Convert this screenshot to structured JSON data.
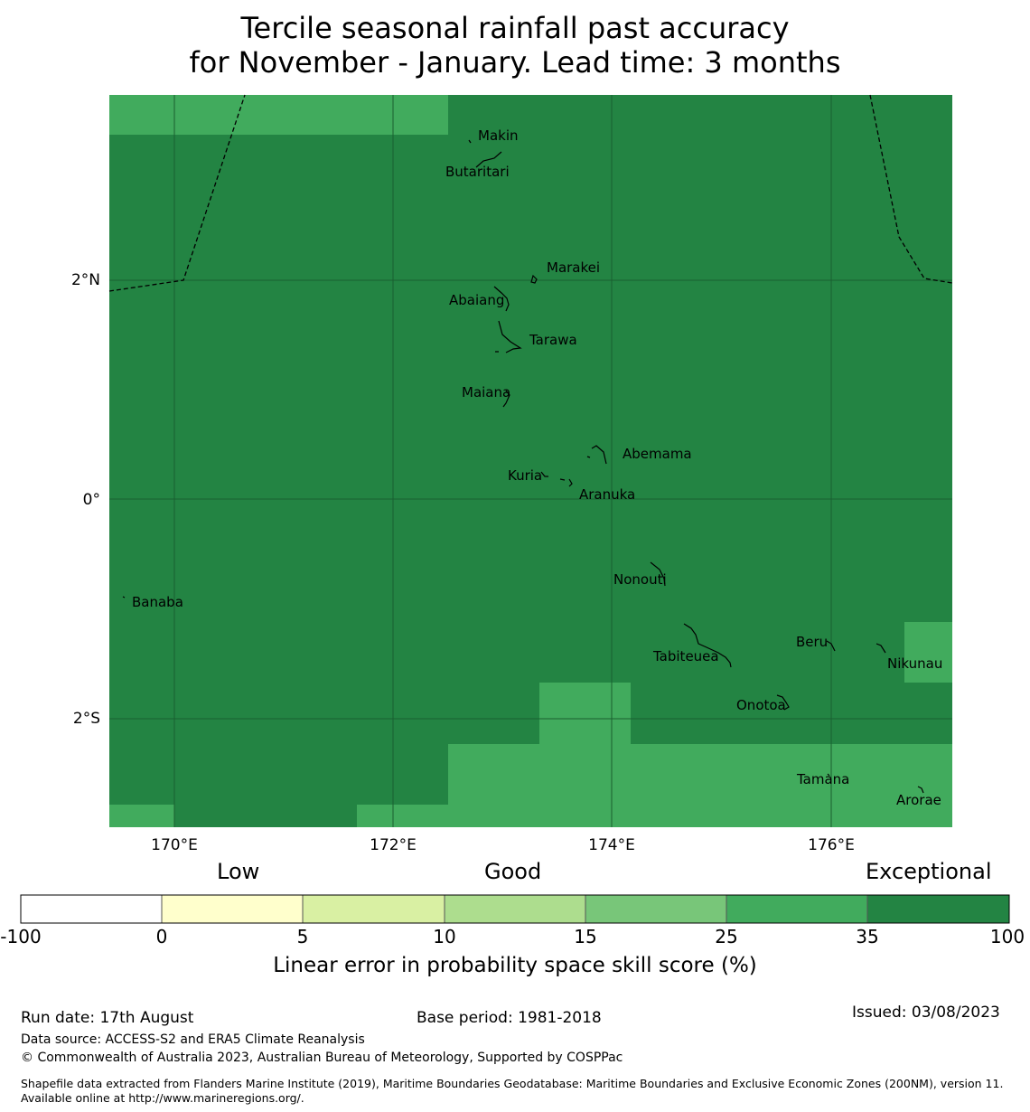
{
  "title": {
    "line1": "Tercile seasonal rainfall past accuracy",
    "line2": "for November - January. Lead time: 3 months"
  },
  "map": {
    "lon_range": [
      169.4,
      177.1
    ],
    "lat_range": [
      -3.0,
      3.7
    ],
    "x_ticks": [
      "170°E",
      "172°E",
      "174°E",
      "176°E"
    ],
    "y_ticks": [
      "2°N",
      "0°",
      "2°S"
    ],
    "colors": {
      "exceptional": "#238443",
      "very_good": "#41ab5d",
      "grid": "#1a5f30"
    },
    "places": [
      {
        "name": "Makin",
        "lon": 172.95,
        "lat": 3.35
      },
      {
        "name": "Butaritari",
        "lon": 172.8,
        "lat": 3.05
      },
      {
        "name": "Marakei",
        "lon": 173.28,
        "lat": 2.0
      },
      {
        "name": "Abaiang",
        "lon": 173.0,
        "lat": 1.85
      },
      {
        "name": "Tarawa",
        "lon": 173.1,
        "lat": 1.4
      },
      {
        "name": "Maiana",
        "lon": 173.02,
        "lat": 0.92
      },
      {
        "name": "Abemama",
        "lon": 173.9,
        "lat": 0.38
      },
      {
        "name": "Kuria",
        "lon": 173.4,
        "lat": 0.22
      },
      {
        "name": "Aranuka",
        "lon": 173.6,
        "lat": 0.17
      },
      {
        "name": "Nonouti",
        "lon": 174.4,
        "lat": -0.65
      },
      {
        "name": "Banaba",
        "lon": 169.53,
        "lat": -0.87
      },
      {
        "name": "Tabiteuea",
        "lon": 174.9,
        "lat": -1.3
      },
      {
        "name": "Beru",
        "lon": 176.0,
        "lat": -1.35
      },
      {
        "name": "Nikunau",
        "lon": 176.45,
        "lat": -1.35
      },
      {
        "name": "Onotoa",
        "lon": 175.55,
        "lat": -1.8
      },
      {
        "name": "Tamana",
        "lon": 175.98,
        "lat": -2.5
      },
      {
        "name": "Arorae",
        "lon": 176.82,
        "lat": -2.65
      }
    ]
  },
  "colorbar": {
    "categories": [
      "Low",
      "Good",
      "Exceptional"
    ],
    "ticks": [
      "-100",
      "0",
      "5",
      "10",
      "15",
      "25",
      "35",
      "100"
    ],
    "colors": [
      "#ffffff",
      "#ffffcc",
      "#d9f0a3",
      "#addd8e",
      "#78c679",
      "#41ab5d",
      "#238443"
    ],
    "label": "Linear error in probability space skill score (%)"
  },
  "footer": {
    "run_date": "Run date: 17th August",
    "base_period": "Base period: 1981-2018",
    "issued": "Issued: 03/08/2023",
    "data_source": "Data source: ACCESS-S2 and ERA5 Climate Reanalysis",
    "copyright": "© Commonwealth of Australia 2023, Australian Bureau of Meteorology, Supported by COSPPac",
    "shapefile": "Shapefile data extracted from Flanders Marine Institute (2019), Maritime Boundaries Geodatabase: Maritime Boundaries and Exclusive Economic Zones (200NM), version 11. Available online at http://www.marineregions.org/."
  }
}
